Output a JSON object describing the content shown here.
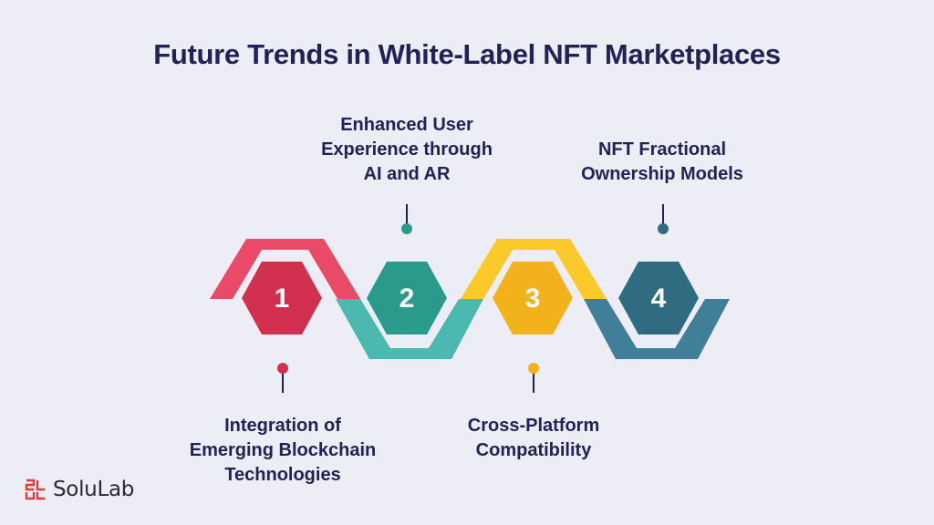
{
  "title": "Future Trends in White-Label NFT Marketplaces",
  "steps": [
    {
      "number": "1",
      "label_lines": [
        "Integration of",
        "Emerging Blockchain",
        "Technologies"
      ],
      "color": "#d2304f"
    },
    {
      "number": "2",
      "label_lines": [
        "Enhanced User",
        "Experience through",
        "AI and AR"
      ],
      "color": "#2a9a8c"
    },
    {
      "number": "3",
      "label_lines": [
        "Cross-Platform",
        "Compatibility"
      ],
      "color": "#f1b21c"
    },
    {
      "number": "4",
      "label_lines": [
        "NFT Fractional",
        "Ownership Models"
      ],
      "color": "#2f6b81"
    }
  ],
  "ribbon_colors": {
    "segment_1": "#e84a67",
    "segment_2": "#4cb9b0",
    "segment_3": "#fbca2a",
    "segment_4": "#417f99"
  },
  "brand": {
    "name": "SoluLab",
    "mark_color": "#e13b3b",
    "mark_icon": "solulab-logo-icon"
  }
}
